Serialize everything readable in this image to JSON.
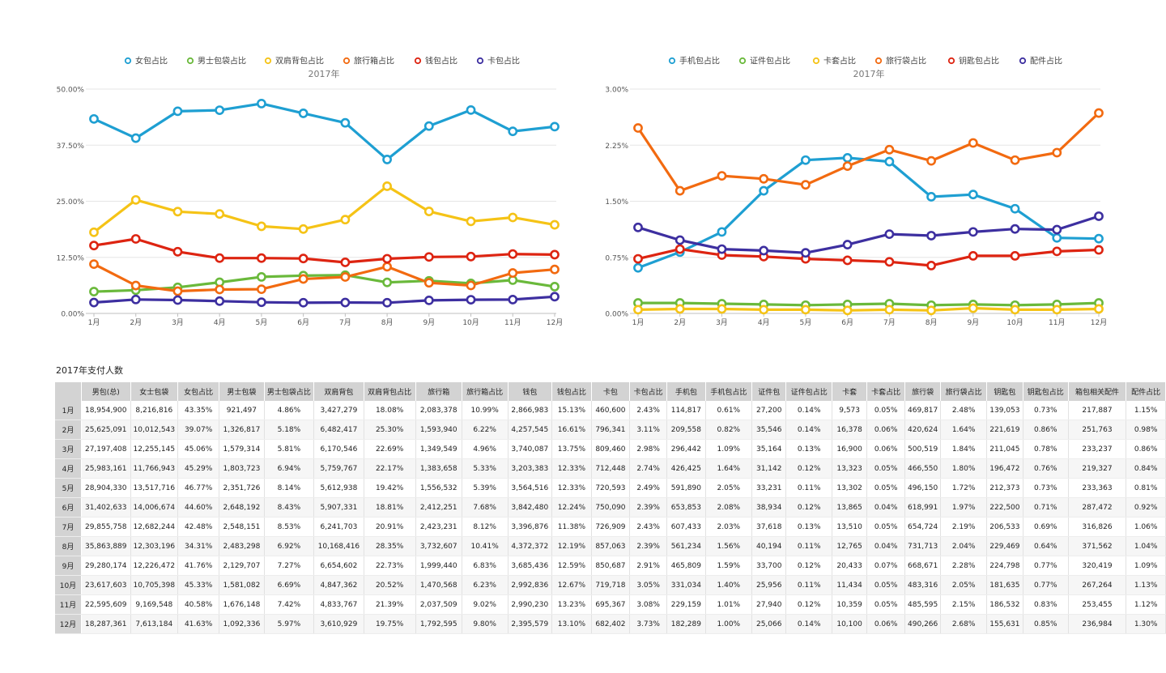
{
  "colors": {
    "blue": "#1e9fd2",
    "green": "#6ab93b",
    "yellow": "#f5c316",
    "orange": "#f26a10",
    "red": "#dd2411",
    "purple": "#3d2fa0"
  },
  "chart_data": [
    {
      "type": "line",
      "title": "2017年",
      "categories": [
        "1月",
        "2月",
        "3月",
        "4月",
        "5月",
        "6月",
        "7月",
        "8月",
        "9月",
        "10月",
        "11月",
        "12月"
      ],
      "ylim": [
        0,
        50
      ],
      "yticks": [
        "0.00%",
        "12.50%",
        "25.00%",
        "37.50%",
        "50.00%"
      ],
      "legend_position": "top",
      "series": [
        {
          "name": "女包占比",
          "color": "#1e9fd2",
          "values": [
            43.35,
            39.07,
            45.06,
            45.29,
            46.77,
            44.6,
            42.48,
            34.31,
            41.76,
            45.33,
            40.58,
            41.63
          ]
        },
        {
          "name": "男士包袋占比",
          "color": "#6ab93b",
          "values": [
            4.86,
            5.18,
            5.81,
            6.94,
            8.14,
            8.43,
            8.53,
            6.92,
            7.27,
            6.69,
            7.42,
            5.97
          ]
        },
        {
          "name": "双肩背包占比",
          "color": "#f5c316",
          "values": [
            18.08,
            25.3,
            22.69,
            22.17,
            19.42,
            18.81,
            20.91,
            28.35,
            22.73,
            20.52,
            21.39,
            19.75
          ]
        },
        {
          "name": "旅行箱占比",
          "color": "#f26a10",
          "values": [
            10.99,
            6.22,
            4.96,
            5.33,
            5.39,
            7.68,
            8.12,
            10.41,
            6.83,
            6.23,
            9.02,
            9.8
          ]
        },
        {
          "name": "钱包占比",
          "color": "#dd2411",
          "values": [
            15.13,
            16.61,
            13.75,
            12.33,
            12.33,
            12.24,
            11.38,
            12.19,
            12.59,
            12.67,
            13.23,
            13.1
          ]
        },
        {
          "name": "卡包占比",
          "color": "#3d2fa0",
          "values": [
            2.43,
            3.11,
            2.98,
            2.74,
            2.49,
            2.39,
            2.43,
            2.39,
            2.91,
            3.05,
            3.08,
            3.73
          ]
        }
      ]
    },
    {
      "type": "line",
      "title": "2017年",
      "categories": [
        "1月",
        "2月",
        "3月",
        "4月",
        "5月",
        "6月",
        "7月",
        "8月",
        "9月",
        "10月",
        "11月",
        "12月"
      ],
      "ylim": [
        0,
        3
      ],
      "yticks": [
        "0.00%",
        "0.75%",
        "1.50%",
        "2.25%",
        "3.00%"
      ],
      "legend_position": "top",
      "series": [
        {
          "name": "手机包占比",
          "color": "#1e9fd2",
          "values": [
            0.61,
            0.82,
            1.09,
            1.64,
            2.05,
            2.08,
            2.03,
            1.56,
            1.59,
            1.4,
            1.01,
            1.0
          ]
        },
        {
          "name": "证件包占比",
          "color": "#6ab93b",
          "values": [
            0.14,
            0.14,
            0.13,
            0.12,
            0.11,
            0.12,
            0.13,
            0.11,
            0.12,
            0.11,
            0.12,
            0.14
          ]
        },
        {
          "name": "卡套占比",
          "color": "#f5c316",
          "values": [
            0.05,
            0.06,
            0.06,
            0.05,
            0.05,
            0.04,
            0.05,
            0.04,
            0.07,
            0.05,
            0.05,
            0.06
          ]
        },
        {
          "name": "旅行袋占比",
          "color": "#f26a10",
          "values": [
            2.48,
            1.64,
            1.84,
            1.8,
            1.72,
            1.97,
            2.19,
            2.04,
            2.28,
            2.05,
            2.15,
            2.68
          ]
        },
        {
          "name": "钥匙包占比",
          "color": "#dd2411",
          "values": [
            0.73,
            0.86,
            0.78,
            0.76,
            0.73,
            0.71,
            0.69,
            0.64,
            0.77,
            0.77,
            0.83,
            0.85
          ]
        },
        {
          "name": "配件占比",
          "color": "#3d2fa0",
          "values": [
            1.15,
            0.98,
            0.86,
            0.84,
            0.81,
            0.92,
            1.06,
            1.04,
            1.09,
            1.13,
            1.12,
            1.3
          ]
        }
      ]
    }
  ],
  "table": {
    "title": "2017年支付人数",
    "headers": [
      "",
      "男包(总)",
      "女士包袋",
      "女包占比",
      "男士包袋",
      "男士包袋占比",
      "双肩背包",
      "双肩背包占比",
      "旅行箱",
      "旅行箱占比",
      "钱包",
      "钱包占比",
      "卡包",
      "卡包占比",
      "手机包",
      "手机包占比",
      "证件包",
      "证件包占比",
      "卡套",
      "卡套占比",
      "旅行袋",
      "旅行袋占比",
      "钥匙包",
      "钥匙包占比",
      "箱包相关配件",
      "配件占比"
    ],
    "rows": [
      [
        "1月",
        "18,954,900",
        "8,216,816",
        "43.35%",
        "921,497",
        "4.86%",
        "3,427,279",
        "18.08%",
        "2,083,378",
        "10.99%",
        "2,866,983",
        "15.13%",
        "460,600",
        "2.43%",
        "114,817",
        "0.61%",
        "27,200",
        "0.14%",
        "9,573",
        "0.05%",
        "469,817",
        "2.48%",
        "139,053",
        "0.73%",
        "217,887",
        "1.15%"
      ],
      [
        "2月",
        "25,625,091",
        "10,012,543",
        "39.07%",
        "1,326,817",
        "5.18%",
        "6,482,417",
        "25.30%",
        "1,593,940",
        "6.22%",
        "4,257,545",
        "16.61%",
        "796,341",
        "3.11%",
        "209,558",
        "0.82%",
        "35,546",
        "0.14%",
        "16,378",
        "0.06%",
        "420,624",
        "1.64%",
        "221,619",
        "0.86%",
        "251,763",
        "0.98%"
      ],
      [
        "3月",
        "27,197,408",
        "12,255,145",
        "45.06%",
        "1,579,314",
        "5.81%",
        "6,170,546",
        "22.69%",
        "1,349,549",
        "4.96%",
        "3,740,087",
        "13.75%",
        "809,460",
        "2.98%",
        "296,442",
        "1.09%",
        "35,164",
        "0.13%",
        "16,900",
        "0.06%",
        "500,519",
        "1.84%",
        "211,045",
        "0.78%",
        "233,237",
        "0.86%"
      ],
      [
        "4月",
        "25,983,161",
        "11,766,943",
        "45.29%",
        "1,803,723",
        "6.94%",
        "5,759,767",
        "22.17%",
        "1,383,658",
        "5.33%",
        "3,203,383",
        "12.33%",
        "712,448",
        "2.74%",
        "426,425",
        "1.64%",
        "31,142",
        "0.12%",
        "13,323",
        "0.05%",
        "466,550",
        "1.80%",
        "196,472",
        "0.76%",
        "219,327",
        "0.84%"
      ],
      [
        "5月",
        "28,904,330",
        "13,517,716",
        "46.77%",
        "2,351,726",
        "8.14%",
        "5,612,938",
        "19.42%",
        "1,556,532",
        "5.39%",
        "3,564,516",
        "12.33%",
        "720,593",
        "2.49%",
        "591,890",
        "2.05%",
        "33,231",
        "0.11%",
        "13,302",
        "0.05%",
        "496,150",
        "1.72%",
        "212,373",
        "0.73%",
        "233,363",
        "0.81%"
      ],
      [
        "6月",
        "31,402,633",
        "14,006,674",
        "44.60%",
        "2,648,192",
        "8.43%",
        "5,907,331",
        "18.81%",
        "2,412,251",
        "7.68%",
        "3,842,480",
        "12.24%",
        "750,090",
        "2.39%",
        "653,853",
        "2.08%",
        "38,934",
        "0.12%",
        "13,865",
        "0.04%",
        "618,991",
        "1.97%",
        "222,500",
        "0.71%",
        "287,472",
        "0.92%"
      ],
      [
        "7月",
        "29,855,758",
        "12,682,244",
        "42.48%",
        "2,548,151",
        "8.53%",
        "6,241,703",
        "20.91%",
        "2,423,231",
        "8.12%",
        "3,396,876",
        "11.38%",
        "726,909",
        "2.43%",
        "607,433",
        "2.03%",
        "37,618",
        "0.13%",
        "13,510",
        "0.05%",
        "654,724",
        "2.19%",
        "206,533",
        "0.69%",
        "316,826",
        "1.06%"
      ],
      [
        "8月",
        "35,863,889",
        "12,303,196",
        "34.31%",
        "2,483,298",
        "6.92%",
        "10,168,416",
        "28.35%",
        "3,732,607",
        "10.41%",
        "4,372,372",
        "12.19%",
        "857,063",
        "2.39%",
        "561,234",
        "1.56%",
        "40,194",
        "0.11%",
        "12,765",
        "0.04%",
        "731,713",
        "2.04%",
        "229,469",
        "0.64%",
        "371,562",
        "1.04%"
      ],
      [
        "9月",
        "29,280,174",
        "12,226,472",
        "41.76%",
        "2,129,707",
        "7.27%",
        "6,654,602",
        "22.73%",
        "1,999,440",
        "6.83%",
        "3,685,436",
        "12.59%",
        "850,687",
        "2.91%",
        "465,809",
        "1.59%",
        "33,700",
        "0.12%",
        "20,433",
        "0.07%",
        "668,671",
        "2.28%",
        "224,798",
        "0.77%",
        "320,419",
        "1.09%"
      ],
      [
        "10月",
        "23,617,603",
        "10,705,398",
        "45.33%",
        "1,581,082",
        "6.69%",
        "4,847,362",
        "20.52%",
        "1,470,568",
        "6.23%",
        "2,992,836",
        "12.67%",
        "719,718",
        "3.05%",
        "331,034",
        "1.40%",
        "25,956",
        "0.11%",
        "11,434",
        "0.05%",
        "483,316",
        "2.05%",
        "181,635",
        "0.77%",
        "267,264",
        "1.13%"
      ],
      [
        "11月",
        "22,595,609",
        "9,169,548",
        "40.58%",
        "1,676,148",
        "7.42%",
        "4,833,767",
        "21.39%",
        "2,037,509",
        "9.02%",
        "2,990,230",
        "13.23%",
        "695,367",
        "3.08%",
        "229,159",
        "1.01%",
        "27,940",
        "0.12%",
        "10,359",
        "0.05%",
        "485,595",
        "2.15%",
        "186,532",
        "0.83%",
        "253,455",
        "1.12%"
      ],
      [
        "12月",
        "18,287,361",
        "7,613,184",
        "41.63%",
        "1,092,336",
        "5.97%",
        "3,610,929",
        "19.75%",
        "1,792,595",
        "9.80%",
        "2,395,579",
        "13.10%",
        "682,402",
        "3.73%",
        "182,289",
        "1.00%",
        "25,066",
        "0.14%",
        "10,100",
        "0.06%",
        "490,266",
        "2.68%",
        "155,631",
        "0.85%",
        "236,984",
        "1.30%"
      ]
    ]
  }
}
